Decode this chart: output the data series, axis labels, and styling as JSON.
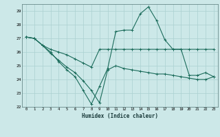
{
  "xlabel": "Humidex (Indice chaleur)",
  "bg_color": "#cce8e8",
  "grid_color": "#aad0d0",
  "line_color": "#1a6b5a",
  "xlim": [
    -0.5,
    23.5
  ],
  "ylim": [
    22,
    29.5
  ],
  "yticks": [
    22,
    23,
    24,
    25,
    26,
    27,
    28,
    29
  ],
  "xticks": [
    0,
    1,
    2,
    3,
    4,
    5,
    6,
    7,
    8,
    9,
    10,
    11,
    12,
    13,
    14,
    15,
    16,
    17,
    18,
    19,
    20,
    21,
    22,
    23
  ],
  "line1_x": [
    0,
    1,
    2,
    3,
    4,
    5,
    6,
    7,
    8,
    9,
    10,
    11,
    12,
    13,
    14,
    15,
    16,
    17,
    18,
    19,
    20,
    21,
    22,
    23
  ],
  "line1_y": [
    27.1,
    27.0,
    26.5,
    26.0,
    25.3,
    24.7,
    24.2,
    23.2,
    22.2,
    23.5,
    24.8,
    27.5,
    27.6,
    27.6,
    28.8,
    29.3,
    28.3,
    26.9,
    26.2,
    26.2,
    24.3,
    24.3,
    24.5,
    24.2
  ],
  "line2_x": [
    0,
    1,
    2,
    3,
    4,
    5,
    6,
    7,
    8,
    9,
    10,
    11,
    12,
    13,
    14,
    15,
    16,
    17,
    18,
    19,
    20,
    21,
    22,
    23
  ],
  "line2_y": [
    27.1,
    27.0,
    26.5,
    26.2,
    26.0,
    25.8,
    25.5,
    25.2,
    24.9,
    26.2,
    26.2,
    26.2,
    26.2,
    26.2,
    26.2,
    26.2,
    26.2,
    26.2,
    26.2,
    26.2,
    26.2,
    26.2,
    26.2,
    26.2
  ],
  "line3_x": [
    0,
    1,
    2,
    3,
    4,
    5,
    6,
    7,
    8,
    9,
    10,
    11,
    12,
    13,
    14,
    15,
    16,
    17,
    18,
    19,
    20,
    21,
    22,
    23
  ],
  "line3_y": [
    27.1,
    27.0,
    26.5,
    25.9,
    25.4,
    24.9,
    24.5,
    23.9,
    23.2,
    22.3,
    24.7,
    25.0,
    24.8,
    24.7,
    24.6,
    24.5,
    24.4,
    24.4,
    24.3,
    24.2,
    24.1,
    24.0,
    24.0,
    24.2
  ]
}
